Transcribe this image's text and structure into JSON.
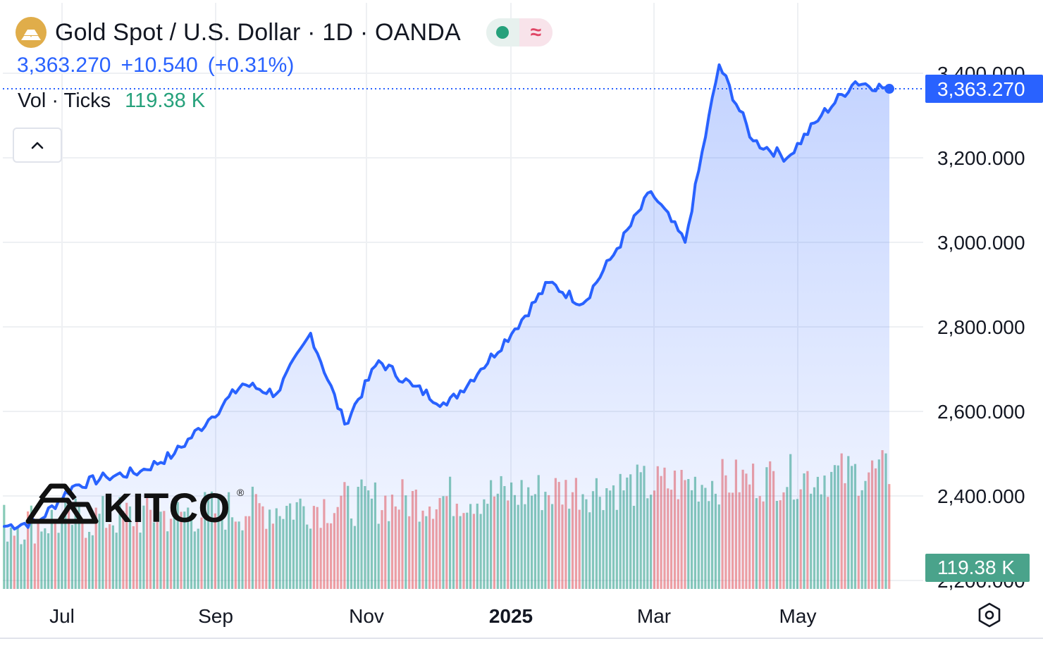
{
  "header": {
    "title": "Gold Spot / U.S. Dollar · 1D · OANDA",
    "symbol_icon": "gold-bars-icon",
    "status_icons": [
      "market-open-dot-icon",
      "delayed-data-wave-icon"
    ]
  },
  "price_info": {
    "last": "3,363.270",
    "change": "+10.540",
    "change_pct": "(+0.31%)"
  },
  "volume_info": {
    "label": "Vol · Ticks",
    "value": "119.38 K"
  },
  "watermark": {
    "text": "KITCO",
    "mark": "®"
  },
  "price_axis": {
    "ticks": [
      "2,200.000",
      "2,400.000",
      "2,600.000",
      "2,800.000",
      "3,000.000",
      "3,200.000",
      "3,400.000"
    ],
    "tick_values": [
      2200,
      2400,
      2600,
      2800,
      3000,
      3200,
      3400
    ],
    "last_price_label": "3,363.270",
    "volume_label": "119.38 K"
  },
  "time_axis": {
    "labels": [
      "Jul",
      "Sep",
      "Nov",
      "2025",
      "Mar",
      "May"
    ],
    "bold": [
      false,
      false,
      false,
      true,
      false,
      false
    ]
  },
  "colors": {
    "line": "#2962ff",
    "area_top": "#2962ff",
    "vol_up": "#26a17b",
    "vol_down": "#ef5350",
    "grid": "#eef0f3",
    "axis_text": "#131722",
    "gold": "#e0ad4a"
  },
  "chart_data": {
    "type": "area",
    "title": "Gold Spot / U.S. Dollar · 1D · OANDA",
    "xlabel": "",
    "ylabel": "",
    "ylim": [
      2200,
      3420
    ],
    "grid": true,
    "x": [
      "2024-06-18",
      "2024-07-01",
      "2024-07-15",
      "2024-08-01",
      "2024-08-15",
      "2024-09-01",
      "2024-09-15",
      "2024-10-01",
      "2024-10-15",
      "2024-10-30",
      "2024-11-14",
      "2024-11-25",
      "2024-12-10",
      "2024-12-30",
      "2025-01-15",
      "2025-02-01",
      "2025-02-11",
      "2025-02-28",
      "2025-03-15",
      "2025-03-31",
      "2025-04-08",
      "2025-04-22",
      "2025-05-01",
      "2025-05-15",
      "2025-05-28",
      "2025-06-13",
      "2025-06-27"
    ],
    "series": [
      {
        "values": [
          2328,
          2340,
          2422,
          2445,
          2458,
          2500,
          2580,
          2665,
          2642,
          2785,
          2570,
          2720,
          2660,
          2615,
          2700,
          2795,
          2905,
          2855,
          2985,
          3120,
          3000,
          3420,
          3240,
          3200,
          3300,
          3380,
          3363
        ]
      }
    ],
    "volume": {
      "label": "Vol · Ticks",
      "last": 119.38,
      "unit": "K",
      "range": [
        60,
        340
      ]
    },
    "last_value": 3363.27
  }
}
